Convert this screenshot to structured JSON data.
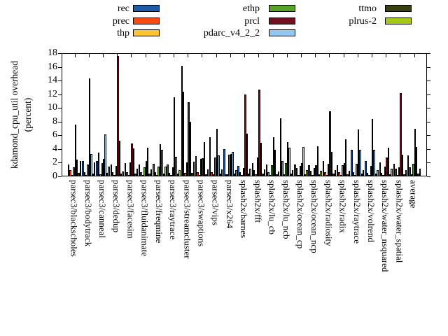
{
  "chart_data": {
    "type": "bar",
    "title": "",
    "ylabel_line1": "kdamond_cpu_util overhead",
    "ylabel_line2": "(percent)",
    "ylim": [
      0,
      18
    ],
    "ytick_step": 2,
    "yticks": [
      0,
      2,
      4,
      6,
      8,
      10,
      12,
      14,
      16,
      18
    ],
    "grid": false,
    "legend_position": "top",
    "categories": [
      "parsec3/blackscholes",
      "parsec3/bodytrack",
      "parsec3/canneal",
      "parsec3/dedup",
      "parsec3/facesim",
      "parsec3/fluidanimate",
      "parsec3/freqmine",
      "parsec3/raytrace",
      "parsec3/streamcluster",
      "parsec3/swaptions",
      "parsec3/vips",
      "parsec3/x264",
      "splash2x/barnes",
      "splash2x/fft",
      "splash2x/lu_cb",
      "splash2x/lu_ncb",
      "splash2x/ocean_cp",
      "splash2x/ocean_ncp",
      "splash2x/radiosity",
      "splash2x/radix",
      "splash2x/raytrace",
      "splash2x/volrend",
      "splash2x/water_nsquared",
      "splash2x/water_spatial",
      "average"
    ],
    "series": [
      {
        "name": "rec",
        "color": "#1f5ca8",
        "values": [
          1.7,
          2.2,
          2.3,
          1.7,
          1.9,
          1.7,
          1.8,
          1.7,
          16.2,
          3.0,
          5.7,
          4.0,
          1.5,
          1.9,
          1.75,
          8.5,
          1.75,
          1.6,
          2.2,
          1.65,
          3.9,
          2.2,
          2.0,
          1.8,
          3.1
        ]
      },
      {
        "name": "prec",
        "color": "#fb4a10",
        "values": [
          0.9,
          0.6,
          3.5,
          0.6,
          0.6,
          0.6,
          0.6,
          0.5,
          12.4,
          0.65,
          0.6,
          0.35,
          0.6,
          0.9,
          0.6,
          2.3,
          1.2,
          0.8,
          0.6,
          0.6,
          0.6,
          0.5,
          0.5,
          1.1,
          1.3
        ]
      },
      {
        "name": "thp",
        "color": "#fdc431",
        "values": [
          0.25,
          0.25,
          0.3,
          0.25,
          0.25,
          0.25,
          0.25,
          0.25,
          0.5,
          0.2,
          0.3,
          0.3,
          0.25,
          0.3,
          0.2,
          0.3,
          0.25,
          0.25,
          0.25,
          0.25,
          0.25,
          0.25,
          0.25,
          0.25,
          0.27
        ]
      },
      {
        "name": "ethp",
        "color": "#58a327",
        "values": [
          1.3,
          1.7,
          1.9,
          1.5,
          2.0,
          1.3,
          1.4,
          1.3,
          2.0,
          2.6,
          2.8,
          3.2,
          1.25,
          2.75,
          1.6,
          1.9,
          1.5,
          1.25,
          1.85,
          1.6,
          1.8,
          1.5,
          1.4,
          1.3,
          1.85
        ]
      },
      {
        "name": "prcl",
        "color": "#72101f",
        "values": [
          7.6,
          14.3,
          2.6,
          17.6,
          4.8,
          2.2,
          4.7,
          11.6,
          10.8,
          2.7,
          7.0,
          3.3,
          12.0,
          12.7,
          5.7,
          5.0,
          1.9,
          1.65,
          9.5,
          1.9,
          6.9,
          8.35,
          2.75,
          12.2,
          7.0
        ]
      },
      {
        "name": "pdarc_v4_2_2",
        "color": "#90c8f0",
        "values": [
          2.5,
          3.3,
          6.1,
          5.2,
          4.1,
          4.2,
          3.9,
          2.9,
          8.0,
          5.0,
          3.1,
          3.6,
          6.2,
          4.9,
          3.9,
          4.2,
          4.3,
          4.4,
          3.55,
          5.4,
          3.9,
          3.9,
          4.2,
          3.2,
          4.3
        ]
      },
      {
        "name": "ttmo",
        "color": "#363f10",
        "values": [
          0.5,
          0.4,
          0.5,
          0.4,
          0.4,
          0.4,
          0.4,
          0.4,
          0.5,
          0.3,
          0.4,
          0.4,
          0.4,
          0.4,
          0.3,
          0.4,
          0.3,
          0.3,
          0.4,
          0.3,
          0.4,
          0.4,
          0.3,
          0.3,
          0.37
        ]
      },
      {
        "name": "plrus-2",
        "color": "#a4c814",
        "values": [
          2.2,
          2.0,
          1.4,
          0.7,
          1.1,
          1.05,
          1.4,
          0.9,
          2.1,
          1.0,
          1.05,
          0.9,
          1.1,
          1.05,
          0.75,
          0.9,
          0.9,
          0.8,
          0.9,
          0.85,
          0.9,
          0.95,
          1.15,
          0.95,
          1.15
        ]
      }
    ],
    "legend_columns": [
      [
        "rec",
        "prec",
        "thp"
      ],
      [
        "ethp",
        "prcl",
        "pdarc_v4_2_2"
      ],
      [
        "ttmo",
        "plrus-2"
      ]
    ]
  }
}
